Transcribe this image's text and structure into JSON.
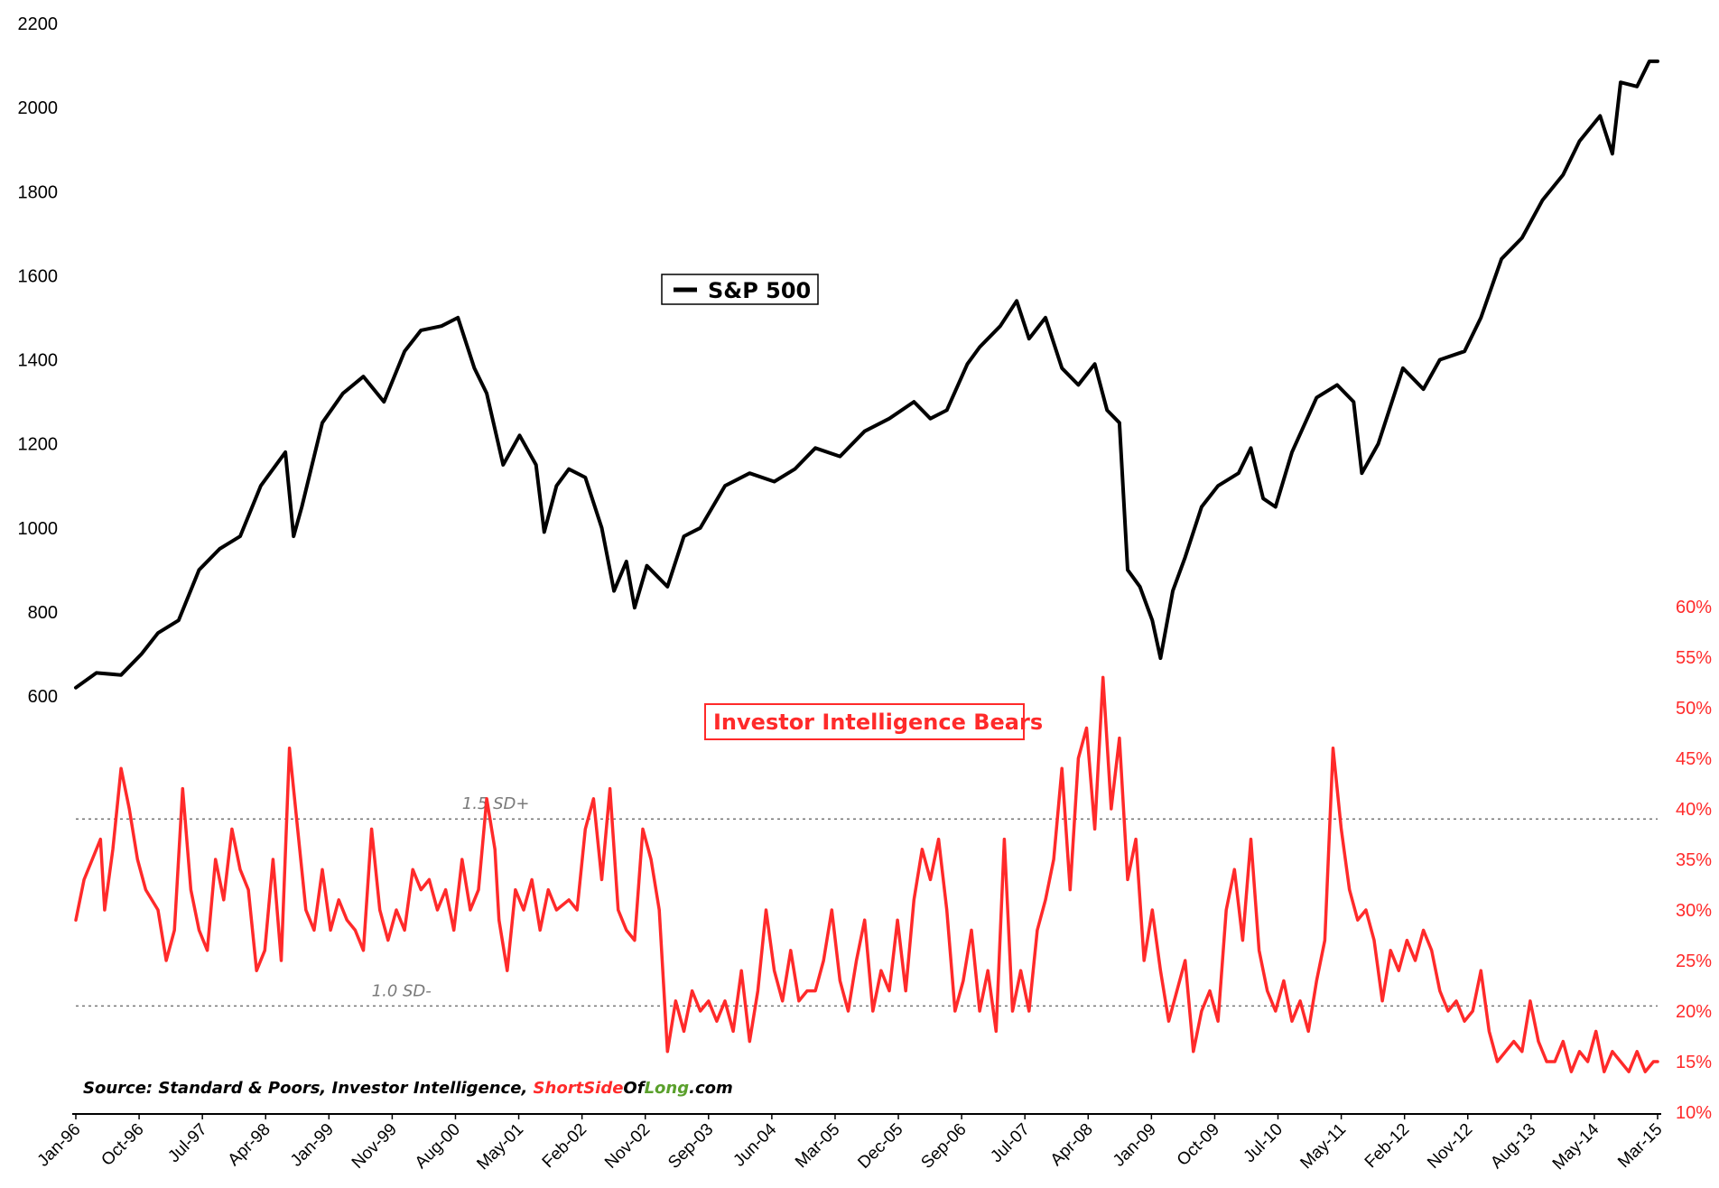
{
  "chart_data": {
    "type": "line",
    "x_labels": [
      "Jan-96",
      "Oct-96",
      "Jul-97",
      "Apr-98",
      "Jan-99",
      "Nov-99",
      "Aug-00",
      "May-01",
      "Feb-02",
      "Nov-02",
      "Sep-03",
      "Jun-04",
      "Mar-05",
      "Dec-05",
      "Sep-06",
      "Jul-07",
      "Apr-08",
      "Jan-09",
      "Oct-09",
      "Jul-10",
      "May-11",
      "Feb-12",
      "Nov-12",
      "Aug-13",
      "May-14",
      "Mar-15"
    ],
    "x_range": [
      1996.0,
      2015.25
    ],
    "left_axis": {
      "ticks": [
        "2200",
        "2000",
        "1800",
        "1600",
        "1400",
        "1200",
        "1000",
        "800",
        "600"
      ],
      "range": [
        600,
        2200
      ]
    },
    "right_axis": {
      "ticks": [
        "60%",
        "55%",
        "50%",
        "45%",
        "40%",
        "35%",
        "30%",
        "25%",
        "20%",
        "15%",
        "10%"
      ],
      "range": [
        10,
        60
      ]
    },
    "series": [
      {
        "name": "S&P 500",
        "axis": "left",
        "color": "#000000",
        "points": [
          [
            1996.0,
            620
          ],
          [
            1996.25,
            655
          ],
          [
            1996.55,
            650
          ],
          [
            1996.8,
            700
          ],
          [
            1997.0,
            750
          ],
          [
            1997.25,
            780
          ],
          [
            1997.5,
            900
          ],
          [
            1997.75,
            950
          ],
          [
            1998.0,
            980
          ],
          [
            1998.25,
            1100
          ],
          [
            1998.55,
            1180
          ],
          [
            1998.65,
            980
          ],
          [
            1998.75,
            1050
          ],
          [
            1999.0,
            1250
          ],
          [
            1999.25,
            1320
          ],
          [
            1999.5,
            1360
          ],
          [
            1999.75,
            1300
          ],
          [
            2000.0,
            1420
          ],
          [
            2000.2,
            1470
          ],
          [
            2000.45,
            1480
          ],
          [
            2000.65,
            1500
          ],
          [
            2000.85,
            1380
          ],
          [
            2001.0,
            1320
          ],
          [
            2001.2,
            1150
          ],
          [
            2001.4,
            1220
          ],
          [
            2001.6,
            1150
          ],
          [
            2001.7,
            990
          ],
          [
            2001.85,
            1100
          ],
          [
            2002.0,
            1140
          ],
          [
            2002.2,
            1120
          ],
          [
            2002.4,
            1000
          ],
          [
            2002.55,
            850
          ],
          [
            2002.7,
            920
          ],
          [
            2002.8,
            810
          ],
          [
            2002.95,
            910
          ],
          [
            2003.2,
            860
          ],
          [
            2003.4,
            980
          ],
          [
            2003.6,
            1000
          ],
          [
            2003.9,
            1100
          ],
          [
            2004.2,
            1130
          ],
          [
            2004.5,
            1110
          ],
          [
            2004.75,
            1140
          ],
          [
            2005.0,
            1190
          ],
          [
            2005.3,
            1170
          ],
          [
            2005.6,
            1230
          ],
          [
            2005.9,
            1260
          ],
          [
            2006.2,
            1300
          ],
          [
            2006.4,
            1260
          ],
          [
            2006.6,
            1280
          ],
          [
            2006.85,
            1390
          ],
          [
            2007.0,
            1430
          ],
          [
            2007.25,
            1480
          ],
          [
            2007.45,
            1540
          ],
          [
            2007.6,
            1450
          ],
          [
            2007.8,
            1500
          ],
          [
            2008.0,
            1380
          ],
          [
            2008.2,
            1340
          ],
          [
            2008.4,
            1390
          ],
          [
            2008.55,
            1280
          ],
          [
            2008.7,
            1250
          ],
          [
            2008.8,
            900
          ],
          [
            2008.95,
            860
          ],
          [
            2009.1,
            780
          ],
          [
            2009.2,
            690
          ],
          [
            2009.35,
            850
          ],
          [
            2009.5,
            930
          ],
          [
            2009.7,
            1050
          ],
          [
            2009.9,
            1100
          ],
          [
            2010.15,
            1130
          ],
          [
            2010.3,
            1190
          ],
          [
            2010.45,
            1070
          ],
          [
            2010.6,
            1050
          ],
          [
            2010.8,
            1180
          ],
          [
            2011.1,
            1310
          ],
          [
            2011.35,
            1340
          ],
          [
            2011.55,
            1300
          ],
          [
            2011.65,
            1130
          ],
          [
            2011.85,
            1200
          ],
          [
            2012.15,
            1380
          ],
          [
            2012.4,
            1330
          ],
          [
            2012.6,
            1400
          ],
          [
            2012.9,
            1420
          ],
          [
            2013.1,
            1500
          ],
          [
            2013.35,
            1640
          ],
          [
            2013.6,
            1690
          ],
          [
            2013.85,
            1780
          ],
          [
            2014.1,
            1840
          ],
          [
            2014.3,
            1920
          ],
          [
            2014.55,
            1980
          ],
          [
            2014.7,
            1890
          ],
          [
            2014.8,
            2060
          ],
          [
            2015.0,
            2050
          ],
          [
            2015.15,
            2110
          ],
          [
            2015.25,
            2110
          ]
        ]
      },
      {
        "name": "Investor Intelligence Bears",
        "axis": "right",
        "color": "#ff2a2a",
        "points": [
          [
            1996.0,
            29
          ],
          [
            1996.1,
            33
          ],
          [
            1996.2,
            35
          ],
          [
            1996.3,
            37
          ],
          [
            1996.35,
            30
          ],
          [
            1996.45,
            36
          ],
          [
            1996.55,
            44
          ],
          [
            1996.65,
            40
          ],
          [
            1996.75,
            35
          ],
          [
            1996.85,
            32
          ],
          [
            1997.0,
            30
          ],
          [
            1997.1,
            25
          ],
          [
            1997.2,
            28
          ],
          [
            1997.3,
            42
          ],
          [
            1997.4,
            32
          ],
          [
            1997.5,
            28
          ],
          [
            1997.6,
            26
          ],
          [
            1997.7,
            35
          ],
          [
            1997.8,
            31
          ],
          [
            1997.9,
            38
          ],
          [
            1998.0,
            34
          ],
          [
            1998.1,
            32
          ],
          [
            1998.2,
            24
          ],
          [
            1998.3,
            26
          ],
          [
            1998.4,
            35
          ],
          [
            1998.5,
            25
          ],
          [
            1998.6,
            46
          ],
          [
            1998.7,
            38
          ],
          [
            1998.8,
            30
          ],
          [
            1998.9,
            28
          ],
          [
            1999.0,
            34
          ],
          [
            1999.1,
            28
          ],
          [
            1999.2,
            31
          ],
          [
            1999.3,
            29
          ],
          [
            1999.4,
            28
          ],
          [
            1999.5,
            26
          ],
          [
            1999.6,
            38
          ],
          [
            1999.7,
            30
          ],
          [
            1999.8,
            27
          ],
          [
            1999.9,
            30
          ],
          [
            2000.0,
            28
          ],
          [
            2000.1,
            34
          ],
          [
            2000.2,
            32
          ],
          [
            2000.3,
            33
          ],
          [
            2000.4,
            30
          ],
          [
            2000.5,
            32
          ],
          [
            2000.6,
            28
          ],
          [
            2000.7,
            35
          ],
          [
            2000.8,
            30
          ],
          [
            2000.9,
            32
          ],
          [
            2001.0,
            41
          ],
          [
            2001.1,
            36
          ],
          [
            2001.15,
            29
          ],
          [
            2001.25,
            24
          ],
          [
            2001.35,
            32
          ],
          [
            2001.45,
            30
          ],
          [
            2001.55,
            33
          ],
          [
            2001.65,
            28
          ],
          [
            2001.75,
            32
          ],
          [
            2001.85,
            30
          ],
          [
            2002.0,
            31
          ],
          [
            2002.1,
            30
          ],
          [
            2002.2,
            38
          ],
          [
            2002.3,
            41
          ],
          [
            2002.4,
            33
          ],
          [
            2002.5,
            42
          ],
          [
            2002.6,
            30
          ],
          [
            2002.7,
            28
          ],
          [
            2002.8,
            27
          ],
          [
            2002.9,
            38
          ],
          [
            2003.0,
            35
          ],
          [
            2003.1,
            30
          ],
          [
            2003.2,
            16
          ],
          [
            2003.3,
            21
          ],
          [
            2003.4,
            18
          ],
          [
            2003.5,
            22
          ],
          [
            2003.6,
            20
          ],
          [
            2003.7,
            21
          ],
          [
            2003.8,
            19
          ],
          [
            2003.9,
            21
          ],
          [
            2004.0,
            18
          ],
          [
            2004.1,
            24
          ],
          [
            2004.2,
            17
          ],
          [
            2004.3,
            22
          ],
          [
            2004.4,
            30
          ],
          [
            2004.5,
            24
          ],
          [
            2004.6,
            21
          ],
          [
            2004.7,
            26
          ],
          [
            2004.8,
            21
          ],
          [
            2004.9,
            22
          ],
          [
            2005.0,
            22
          ],
          [
            2005.1,
            25
          ],
          [
            2005.2,
            30
          ],
          [
            2005.3,
            23
          ],
          [
            2005.4,
            20
          ],
          [
            2005.5,
            25
          ],
          [
            2005.6,
            29
          ],
          [
            2005.7,
            20
          ],
          [
            2005.8,
            24
          ],
          [
            2005.9,
            22
          ],
          [
            2006.0,
            29
          ],
          [
            2006.1,
            22
          ],
          [
            2006.2,
            31
          ],
          [
            2006.3,
            36
          ],
          [
            2006.4,
            33
          ],
          [
            2006.5,
            37
          ],
          [
            2006.6,
            30
          ],
          [
            2006.7,
            20
          ],
          [
            2006.8,
            23
          ],
          [
            2006.9,
            28
          ],
          [
            2007.0,
            20
          ],
          [
            2007.1,
            24
          ],
          [
            2007.2,
            18
          ],
          [
            2007.3,
            37
          ],
          [
            2007.4,
            20
          ],
          [
            2007.5,
            24
          ],
          [
            2007.6,
            20
          ],
          [
            2007.7,
            28
          ],
          [
            2007.8,
            31
          ],
          [
            2007.9,
            35
          ],
          [
            2008.0,
            44
          ],
          [
            2008.1,
            32
          ],
          [
            2008.2,
            45
          ],
          [
            2008.3,
            48
          ],
          [
            2008.4,
            38
          ],
          [
            2008.5,
            53
          ],
          [
            2008.6,
            40
          ],
          [
            2008.7,
            47
          ],
          [
            2008.8,
            33
          ],
          [
            2008.9,
            37
          ],
          [
            2009.0,
            25
          ],
          [
            2009.1,
            30
          ],
          [
            2009.2,
            24
          ],
          [
            2009.3,
            19
          ],
          [
            2009.4,
            22
          ],
          [
            2009.5,
            25
          ],
          [
            2009.6,
            16
          ],
          [
            2009.7,
            20
          ],
          [
            2009.8,
            22
          ],
          [
            2009.9,
            19
          ],
          [
            2010.0,
            30
          ],
          [
            2010.1,
            34
          ],
          [
            2010.2,
            27
          ],
          [
            2010.3,
            37
          ],
          [
            2010.4,
            26
          ],
          [
            2010.5,
            22
          ],
          [
            2010.6,
            20
          ],
          [
            2010.7,
            23
          ],
          [
            2010.8,
            19
          ],
          [
            2010.9,
            21
          ],
          [
            2011.0,
            18
          ],
          [
            2011.1,
            23
          ],
          [
            2011.2,
            27
          ],
          [
            2011.3,
            46
          ],
          [
            2011.4,
            38
          ],
          [
            2011.5,
            32
          ],
          [
            2011.6,
            29
          ],
          [
            2011.7,
            30
          ],
          [
            2011.8,
            27
          ],
          [
            2011.9,
            21
          ],
          [
            2012.0,
            26
          ],
          [
            2012.1,
            24
          ],
          [
            2012.2,
            27
          ],
          [
            2012.3,
            25
          ],
          [
            2012.4,
            28
          ],
          [
            2012.5,
            26
          ],
          [
            2012.6,
            22
          ],
          [
            2012.7,
            20
          ],
          [
            2012.8,
            21
          ],
          [
            2012.9,
            19
          ],
          [
            2013.0,
            20
          ],
          [
            2013.1,
            24
          ],
          [
            2013.2,
            18
          ],
          [
            2013.3,
            15
          ],
          [
            2013.4,
            16
          ],
          [
            2013.5,
            17
          ],
          [
            2013.6,
            16
          ],
          [
            2013.7,
            21
          ],
          [
            2013.8,
            17
          ],
          [
            2013.9,
            15
          ],
          [
            2014.0,
            15
          ],
          [
            2014.1,
            17
          ],
          [
            2014.2,
            14
          ],
          [
            2014.3,
            16
          ],
          [
            2014.4,
            15
          ],
          [
            2014.5,
            18
          ],
          [
            2014.6,
            14
          ],
          [
            2014.7,
            16
          ],
          [
            2014.8,
            15
          ],
          [
            2014.9,
            14
          ],
          [
            2015.0,
            16
          ],
          [
            2015.1,
            14
          ],
          [
            2015.2,
            15
          ],
          [
            2015.25,
            15
          ]
        ]
      }
    ],
    "reference_lines": [
      {
        "label": "1.5 SD+",
        "axis": "right",
        "value": 39,
        "label_x": 2000.7
      },
      {
        "label": "1.0 SD-",
        "axis": "right",
        "value": 20.5,
        "label_x": 1999.6
      }
    ],
    "legends": [
      {
        "label": "S&P 500",
        "color": "#000000"
      },
      {
        "label": "Investor Intelligence Bears",
        "color": "#ff2a2a"
      }
    ],
    "source": {
      "prefix": "Source: Standard & Poors, Investor Intelligence, ",
      "brand_short": "Short",
      "brand_side": "Side",
      "brand_of": "Of",
      "brand_long": "Long",
      "brand_suffix": ".com"
    }
  },
  "colors": {
    "red": "#ff2a2a",
    "green": "#5aa02c",
    "grid": "#777777"
  }
}
